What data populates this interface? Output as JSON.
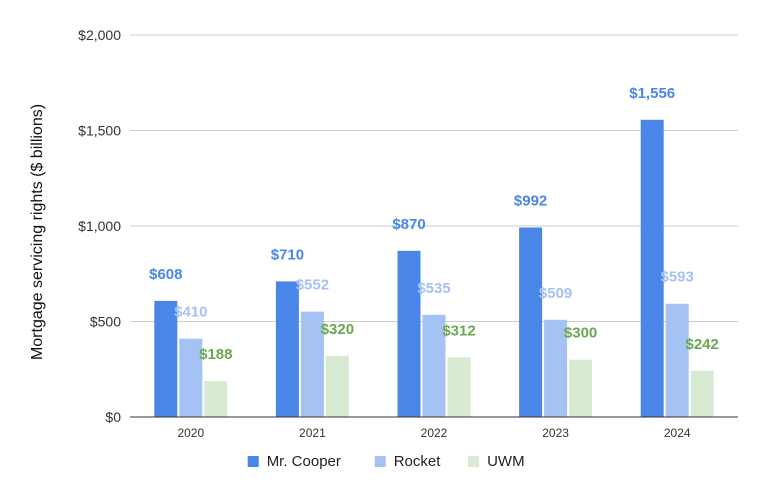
{
  "chart_data": {
    "type": "bar",
    "categories": [
      "2020",
      "2021",
      "2022",
      "2023",
      "2024"
    ],
    "series": [
      {
        "name": "Mr. Cooper",
        "values": [
          608,
          710,
          870,
          992,
          1556
        ],
        "labels": [
          "$608",
          "$710",
          "$870",
          "$992",
          "$1,556"
        ],
        "color": "#4a86e8",
        "label_color": "#4a86e8"
      },
      {
        "name": "Rocket",
        "values": [
          410,
          552,
          535,
          509,
          593
        ],
        "labels": [
          "$410",
          "$552",
          "$535",
          "$509",
          "$593"
        ],
        "color": "#a4c2f4",
        "label_color": "#a4c2f4"
      },
      {
        "name": "UWM",
        "values": [
          188,
          320,
          312,
          300,
          242
        ],
        "labels": [
          "$188",
          "$320",
          "$312",
          "$300",
          "$242"
        ],
        "color": "#d9ead3",
        "label_color": "#6aa84f"
      }
    ],
    "title": "",
    "xlabel": "",
    "ylabel": "Mortgage servicing rights ($ billions)",
    "ylim": [
      0,
      2000
    ],
    "yticks": [
      0,
      500,
      1000,
      1500,
      2000
    ],
    "ytick_labels": [
      "$0",
      "$500",
      "$1,000",
      "$1,500",
      "$2,000"
    ],
    "grid": true,
    "legend_position": "bottom"
  }
}
